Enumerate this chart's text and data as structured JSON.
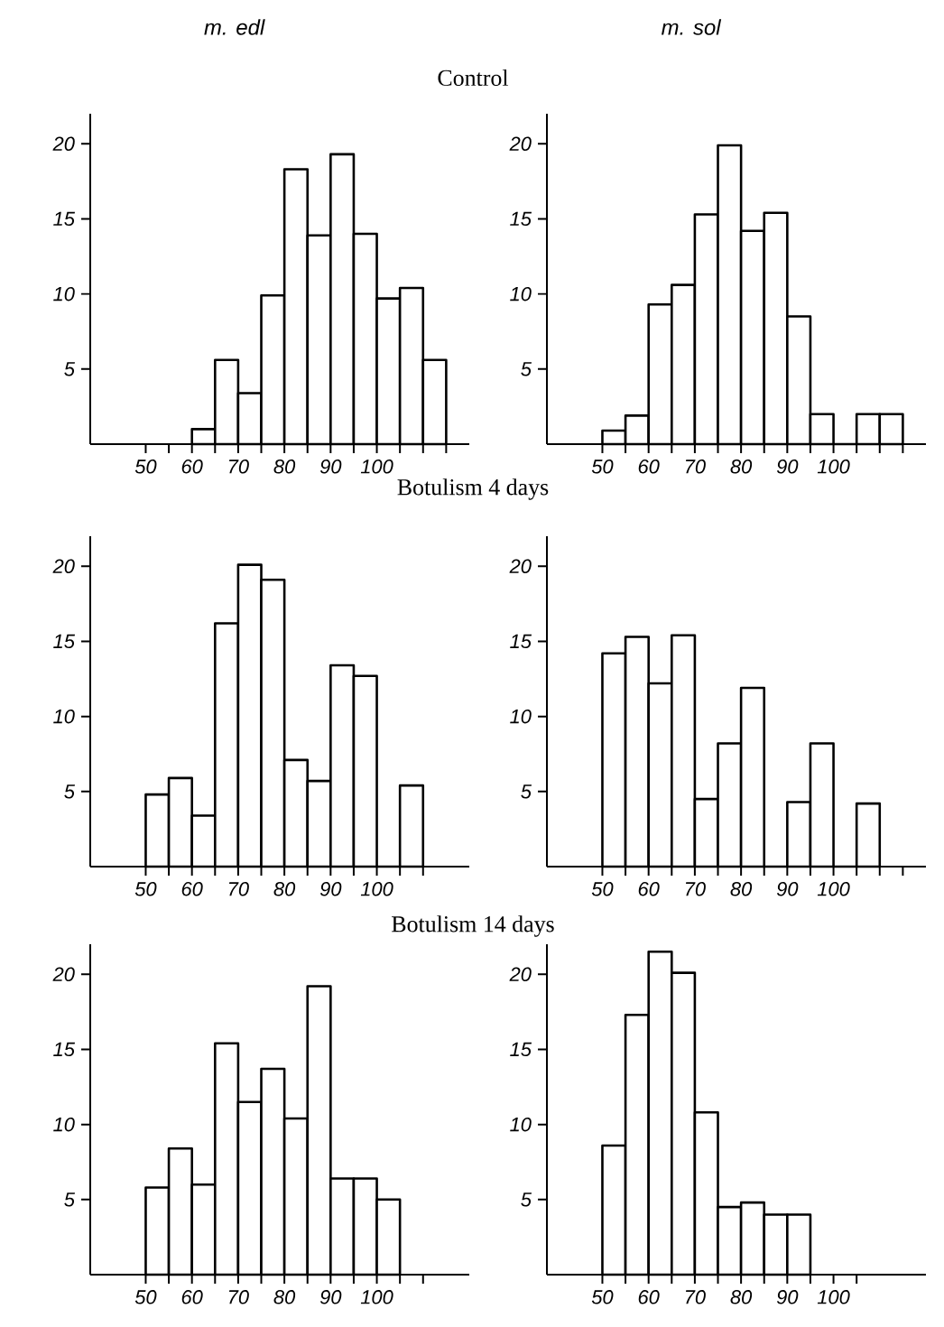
{
  "chart_data": [
    {
      "type": "histogram",
      "title": "m. edl",
      "annotations": [
        "Control"
      ],
      "bins": [
        60,
        65,
        70,
        75,
        80,
        85,
        90,
        95,
        100,
        105,
        110,
        115
      ],
      "values": [
        1.0,
        5.6,
        3.4,
        9.9,
        18.3,
        13.9,
        19.3,
        14.0,
        9.7,
        10.4,
        5.6
      ],
      "xlim": [
        38,
        120
      ],
      "xticks": [
        50,
        {
          "value": 55,
          "label": null
        },
        60,
        {
          "value": 65,
          "label": null
        },
        70,
        {
          "value": 75,
          "label": null
        },
        80,
        {
          "value": 85,
          "label": null
        },
        90,
        {
          "value": 95,
          "label": null
        },
        100,
        {
          "value": 105,
          "label": null
        },
        {
          "value": 110,
          "label": null
        },
        {
          "value": 115,
          "label": null
        }
      ],
      "ylim": [
        0,
        22
      ],
      "yticks": [
        5,
        10,
        15,
        20
      ]
    },
    {
      "type": "histogram",
      "title": "m. sol",
      "bins": [
        50,
        55,
        60,
        65,
        70,
        75,
        80,
        85,
        90,
        95,
        100,
        105,
        110,
        115
      ],
      "values": [
        0.9,
        1.9,
        9.3,
        10.6,
        15.3,
        19.9,
        14.2,
        15.4,
        8.5,
        2.0,
        0,
        2.0,
        2.0
      ],
      "xlim": [
        38,
        120
      ],
      "xticks": [
        50,
        {
          "value": 55,
          "label": null
        },
        60,
        {
          "value": 65,
          "label": null
        },
        70,
        {
          "value": 75,
          "label": null
        },
        80,
        {
          "value": 85,
          "label": null
        },
        90,
        {
          "value": 95,
          "label": null
        },
        100,
        {
          "value": 105,
          "label": null
        },
        {
          "value": 110,
          "label": null
        },
        {
          "value": 115,
          "label": null
        }
      ],
      "ylim": [
        0,
        22
      ],
      "yticks": [
        5,
        10,
        15,
        20
      ]
    },
    {
      "type": "histogram",
      "annotations": [
        "Botulism 4 days"
      ],
      "bins": [
        50,
        55,
        60,
        65,
        70,
        75,
        80,
        85,
        90,
        95,
        100,
        105,
        110
      ],
      "values": [
        4.8,
        5.9,
        3.4,
        16.2,
        20.1,
        19.1,
        7.1,
        5.7,
        13.4,
        12.7,
        0,
        5.4
      ],
      "xlim": [
        38,
        120
      ],
      "xticks": [
        50,
        {
          "value": 55,
          "label": null
        },
        60,
        {
          "value": 65,
          "label": null
        },
        70,
        {
          "value": 75,
          "label": null
        },
        80,
        {
          "value": 85,
          "label": null
        },
        90,
        {
          "value": 95,
          "label": null
        },
        100,
        {
          "value": 105,
          "label": null
        },
        {
          "value": 110,
          "label": null
        }
      ],
      "ylim": [
        0,
        22
      ],
      "yticks": [
        5,
        10,
        15,
        20
      ]
    },
    {
      "type": "histogram",
      "bins": [
        50,
        55,
        60,
        65,
        70,
        75,
        80,
        85,
        90,
        95,
        100,
        105,
        110
      ],
      "values": [
        14.2,
        15.3,
        12.2,
        15.4,
        4.5,
        8.2,
        11.9,
        0,
        4.3,
        8.2,
        0,
        4.2
      ],
      "xlim": [
        38,
        120
      ],
      "xticks": [
        50,
        {
          "value": 55,
          "label": null
        },
        60,
        {
          "value": 65,
          "label": null
        },
        70,
        {
          "value": 75,
          "label": null
        },
        80,
        {
          "value": 85,
          "label": null
        },
        90,
        {
          "value": 95,
          "label": null
        },
        100,
        {
          "value": 105,
          "label": null
        },
        {
          "value": 110,
          "label": null
        },
        {
          "value": 115,
          "label": null
        }
      ],
      "ylim": [
        0,
        22
      ],
      "yticks": [
        5,
        10,
        15,
        20
      ]
    },
    {
      "type": "histogram",
      "annotations": [
        "Botulism 14 days"
      ],
      "bins": [
        50,
        55,
        60,
        65,
        70,
        75,
        80,
        85,
        90,
        95,
        100,
        105
      ],
      "values": [
        5.8,
        8.4,
        6.0,
        15.4,
        11.5,
        13.7,
        10.4,
        19.2,
        6.4,
        6.4,
        5.0
      ],
      "xlim": [
        38,
        120
      ],
      "xticks": [
        50,
        {
          "value": 55,
          "label": null
        },
        60,
        {
          "value": 65,
          "label": null
        },
        70,
        {
          "value": 75,
          "label": null
        },
        80,
        {
          "value": 85,
          "label": null
        },
        90,
        {
          "value": 95,
          "label": null
        },
        100,
        {
          "value": 105,
          "label": null
        },
        {
          "value": 110,
          "label": null
        }
      ],
      "ylim": [
        0,
        22
      ],
      "yticks": [
        5,
        10,
        15,
        20
      ]
    },
    {
      "type": "histogram",
      "bins": [
        50,
        55,
        60,
        65,
        70,
        75,
        80,
        85,
        90,
        95
      ],
      "values": [
        8.6,
        17.3,
        21.5,
        20.1,
        10.8,
        4.5,
        4.8,
        4.0,
        4.0
      ],
      "xlim": [
        38,
        120
      ],
      "xticks": [
        50,
        {
          "value": 55,
          "label": null
        },
        60,
        {
          "value": 65,
          "label": null
        },
        70,
        {
          "value": 75,
          "label": null
        },
        80,
        {
          "value": 85,
          "label": null
        },
        90,
        {
          "value": 95,
          "label": null
        },
        100,
        {
          "value": 105,
          "label": null
        }
      ],
      "ylim": [
        0,
        22
      ],
      "yticks": [
        5,
        10,
        15,
        20
      ]
    }
  ]
}
